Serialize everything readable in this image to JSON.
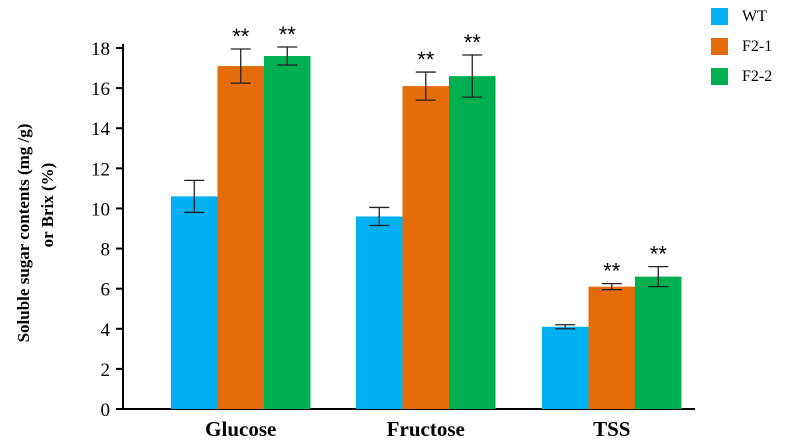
{
  "chart_data": {
    "type": "bar",
    "categories": [
      "Glucose",
      "Fructose",
      "TSS"
    ],
    "series": [
      {
        "name": "WT",
        "color": "#00b0f0",
        "values": [
          10.6,
          9.6,
          4.1
        ],
        "errors": [
          0.8,
          0.45,
          0.1
        ],
        "annotations": [
          "",
          "",
          ""
        ]
      },
      {
        "name": "F2-1",
        "color": "#e46c0a",
        "values": [
          17.1,
          16.1,
          6.1
        ],
        "errors": [
          0.85,
          0.7,
          0.15
        ],
        "annotations": [
          "**",
          "**",
          "**"
        ]
      },
      {
        "name": "F2-2",
        "color": "#00b050",
        "values": [
          17.6,
          16.6,
          6.6
        ],
        "errors": [
          0.45,
          1.05,
          0.5
        ],
        "annotations": [
          "**",
          "**",
          "**"
        ]
      }
    ],
    "ylabel_lines": [
      "Soluble sugar contents (mg /g)",
      "or Brix (%)"
    ],
    "ylim": [
      0,
      18
    ],
    "yticks": [
      "0",
      "2",
      "4",
      "6",
      "8",
      "10",
      "12",
      "14",
      "16",
      "18"
    ],
    "legend_position": "top-right",
    "grid": false
  }
}
